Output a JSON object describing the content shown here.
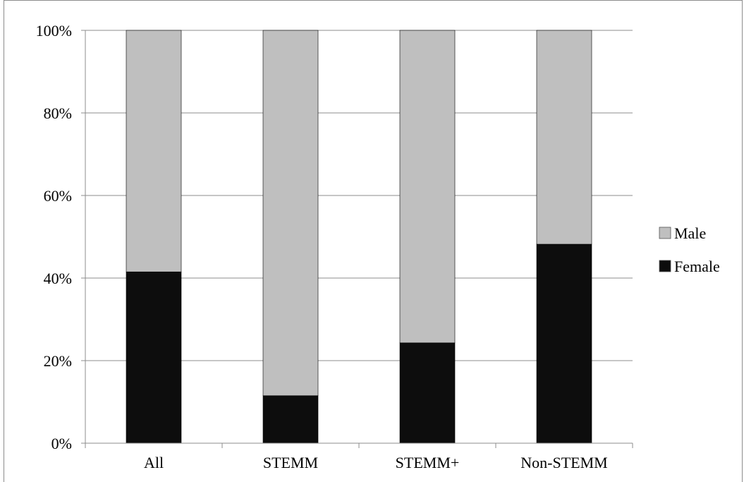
{
  "chart_data": {
    "type": "bar",
    "stacked": true,
    "normalized_percent": true,
    "categories": [
      "All",
      "STEMM",
      "STEMM+",
      "Non-STEMM"
    ],
    "series": [
      {
        "name": "Female",
        "values": [
          41.5,
          11.5,
          24.3,
          48.2
        ],
        "color": "#0d0d0d"
      },
      {
        "name": "Male",
        "values": [
          58.5,
          88.5,
          75.7,
          51.8
        ],
        "color": "#bfbfbf"
      }
    ],
    "title": "",
    "xlabel": "",
    "ylabel": "",
    "ylim": [
      0,
      100
    ],
    "y_ticks": [
      "0%",
      "20%",
      "40%",
      "60%",
      "80%",
      "100%"
    ],
    "grid": true,
    "legend_position": "right",
    "legend_order": [
      "Male",
      "Female"
    ]
  }
}
